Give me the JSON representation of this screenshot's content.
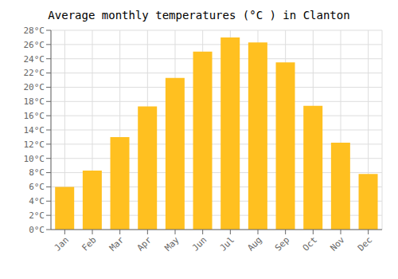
{
  "chart_data": {
    "type": "bar",
    "title": "Average monthly temperatures (°C ) in Clanton",
    "categories": [
      "Jan",
      "Feb",
      "Mar",
      "Apr",
      "May",
      "Jun",
      "Jul",
      "Aug",
      "Sep",
      "Oct",
      "Nov",
      "Dec"
    ],
    "values": [
      6.0,
      8.3,
      13.0,
      17.3,
      21.3,
      25.0,
      27.0,
      26.3,
      23.5,
      17.4,
      12.2,
      7.8
    ],
    "color": "#FFC020",
    "ylim": [
      0,
      28
    ],
    "yticks": [
      {
        "value": 0,
        "label": "0°C"
      },
      {
        "value": 2,
        "label": "2°C"
      },
      {
        "value": 4,
        "label": "4°C"
      },
      {
        "value": 6,
        "label": "6°C"
      },
      {
        "value": 8,
        "label": "8°C"
      },
      {
        "value": 10,
        "label": "10°C"
      },
      {
        "value": 12,
        "label": "12°C"
      },
      {
        "value": 14,
        "label": "14°C"
      },
      {
        "value": 16,
        "label": "16°C"
      },
      {
        "value": 18,
        "label": "18°C"
      },
      {
        "value": 20,
        "label": "20°C"
      },
      {
        "value": 22,
        "label": "22°C"
      },
      {
        "value": 24,
        "label": "24°C"
      },
      {
        "value": 26,
        "label": "26°C"
      },
      {
        "value": 28,
        "label": "28°C"
      }
    ],
    "grid": true
  }
}
